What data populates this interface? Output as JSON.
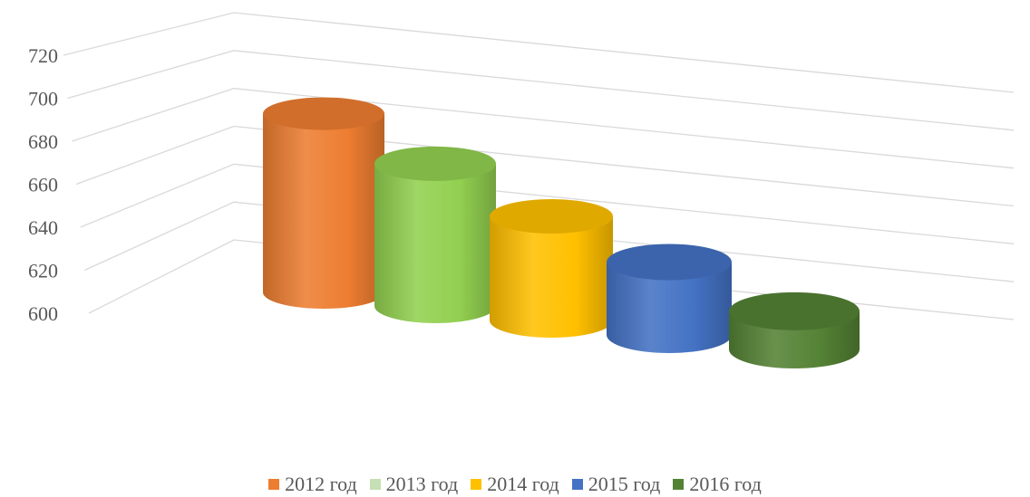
{
  "chart_data": {
    "type": "bar",
    "style": "3d-cylinder",
    "categories": [
      "2012 год",
      "2013 год",
      "2014 год",
      "2015 год",
      "2016 год"
    ],
    "series": [
      {
        "values": [
          703,
          682,
          660,
          642,
          622
        ]
      }
    ],
    "series_colors": [
      "#ED7D31",
      "#92D050",
      "#FFC000",
      "#4472C4",
      "#548235"
    ],
    "legend_swatch_colors": [
      "#ED7D31",
      "#C5E0B4",
      "#FFC000",
      "#4472C4",
      "#548235"
    ],
    "ytick_labels": [
      "600",
      "620",
      "640",
      "660",
      "680",
      "700",
      "720"
    ],
    "ylim": [
      600,
      720
    ],
    "grid": true,
    "legend": "bottom"
  }
}
